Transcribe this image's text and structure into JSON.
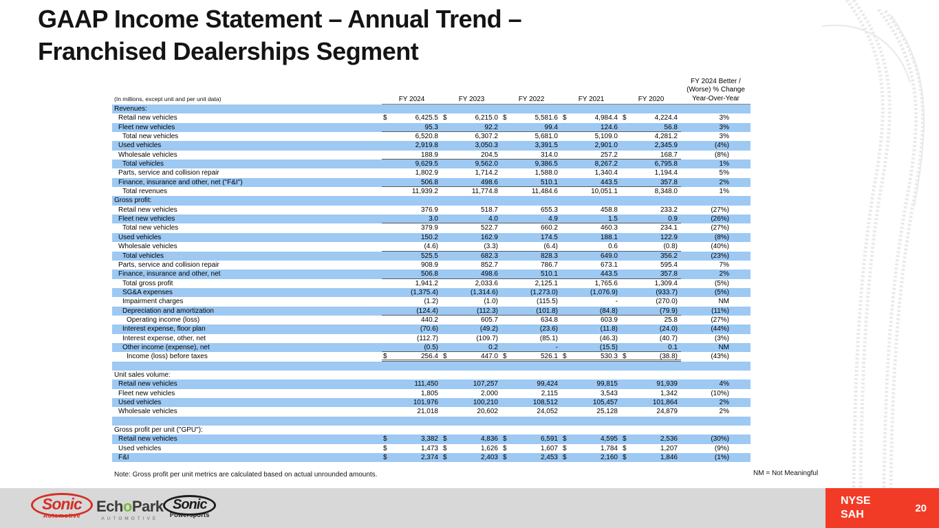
{
  "slide": {
    "title_line1": "GAAP Income Statement – Annual Trend –",
    "title_line2": "Franchised Dealerships Segment"
  },
  "colors": {
    "row_highlight_blue": "#9dc9f3",
    "accent_red": "#f23b26",
    "footer_gray": "#d8d8d8",
    "echopark_green": "#7db742",
    "sonic_red": "#d42e26"
  },
  "table": {
    "units_label": "(In millions, except unit and per unit data)",
    "columns": [
      "FY 2024",
      "FY 2023",
      "FY 2022",
      "FY 2021",
      "FY 2020"
    ],
    "change_header": [
      "FY 2024 Better /",
      "(Worse) % Change",
      "Year-Over-Year"
    ],
    "rows": [
      {
        "label": "Revenues:",
        "indent": 0
      },
      {
        "label": "Retail new vehicles",
        "indent": 1,
        "dollar": true,
        "values": [
          "6,425.5",
          "6,215.0",
          "5,581.6",
          "4,984.4",
          "4,224.4"
        ],
        "change": "3%"
      },
      {
        "label": "Fleet new vehicles",
        "indent": 1,
        "u": true,
        "values": [
          "95.3",
          "92.2",
          "99.4",
          "124.6",
          "56.8"
        ],
        "change": "3%"
      },
      {
        "label": "Total new vehicles",
        "indent": 2,
        "values": [
          "6,520.8",
          "6,307.2",
          "5,681.0",
          "5,109.0",
          "4,281.2"
        ],
        "change": "3%"
      },
      {
        "label": "Used vehicles",
        "indent": 1,
        "values": [
          "2,919.8",
          "3,050.3",
          "3,391.5",
          "2,901.0",
          "2,345.9"
        ],
        "change": "(4%)"
      },
      {
        "label": "Wholesale vehicles",
        "indent": 1,
        "u": true,
        "values": [
          "188.9",
          "204.5",
          "314.0",
          "257.2",
          "168.7"
        ],
        "change": "(8%)"
      },
      {
        "label": "Total vehicles",
        "indent": 2,
        "values": [
          "9,629.5",
          "9,562.0",
          "9,386.5",
          "8,267.2",
          "6,795.8"
        ],
        "change": "1%"
      },
      {
        "label": "Parts, service and collision repair",
        "indent": 1,
        "values": [
          "1,802.9",
          "1,714.2",
          "1,588.0",
          "1,340.4",
          "1,194.4"
        ],
        "change": "5%"
      },
      {
        "label": "Finance, insurance and other, net (\"F&I\")",
        "indent": 1,
        "u": true,
        "values": [
          "506.8",
          "498.6",
          "510.1",
          "443.5",
          "357.8"
        ],
        "change": "2%"
      },
      {
        "label": "Total revenues",
        "indent": 2,
        "values": [
          "11,939.2",
          "11,774.8",
          "11,484.6",
          "10,051.1",
          "8,348.0"
        ],
        "change": "1%"
      },
      {
        "label": "Gross profit:",
        "indent": 0
      },
      {
        "label": "Retail new vehicles",
        "indent": 1,
        "values": [
          "376.9",
          "518.7",
          "655.3",
          "458.8",
          "233.2"
        ],
        "change": "(27%)"
      },
      {
        "label": "Fleet new vehicles",
        "indent": 1,
        "u": true,
        "values": [
          "3.0",
          "4.0",
          "4.9",
          "1.5",
          "0.9"
        ],
        "change": "(26%)"
      },
      {
        "label": "Total new vehicles",
        "indent": 2,
        "values": [
          "379.9",
          "522.7",
          "660.2",
          "460.3",
          "234.1"
        ],
        "change": "(27%)"
      },
      {
        "label": "Used vehicles",
        "indent": 1,
        "values": [
          "150.2",
          "162.9",
          "174.5",
          "188.1",
          "122.9"
        ],
        "change": "(8%)"
      },
      {
        "label": "Wholesale vehicles",
        "indent": 1,
        "u": true,
        "values": [
          "(4.6)",
          "(3.3)",
          "(6.4)",
          "0.6",
          "(0.8)"
        ],
        "change": "(40%)"
      },
      {
        "label": "Total vehicles",
        "indent": 2,
        "values": [
          "525.5",
          "682.3",
          "828.3",
          "649.0",
          "356.2"
        ],
        "change": "(23%)"
      },
      {
        "label": "Parts, service and collision repair",
        "indent": 1,
        "values": [
          "908.9",
          "852.7",
          "786.7",
          "673.1",
          "595.4"
        ],
        "change": "7%"
      },
      {
        "label": "Finance, insurance and other, net",
        "indent": 1,
        "u": true,
        "values": [
          "506.8",
          "498.6",
          "510.1",
          "443.5",
          "357.8"
        ],
        "change": "2%"
      },
      {
        "label": "Total gross profit",
        "indent": 2,
        "values": [
          "1,941.2",
          "2,033.6",
          "2,125.1",
          "1,765.6",
          "1,309.4"
        ],
        "change": "(5%)"
      },
      {
        "label": "SG&A expenses",
        "indent": 2,
        "values": [
          "(1,375.4)",
          "(1,314.6)",
          "(1,273.0)",
          "(1,076.9)",
          "(933.7)"
        ],
        "change": "(5%)"
      },
      {
        "label": "Impairment charges",
        "indent": 2,
        "values": [
          "(1.2)",
          "(1.0)",
          "(115.5)",
          "-",
          "(270.0)"
        ],
        "change": "NM"
      },
      {
        "label": "Depreciation and amortization",
        "indent": 2,
        "u": true,
        "values": [
          "(124.4)",
          "(112.3)",
          "(101.8)",
          "(84.8)",
          "(79.9)"
        ],
        "change": "(11%)"
      },
      {
        "label": "Operating income (loss)",
        "indent": 3,
        "values": [
          "440.2",
          "605.7",
          "634.8",
          "603.9",
          "25.8"
        ],
        "change": "(27%)"
      },
      {
        "label": "Interest expense, floor plan",
        "indent": 2,
        "values": [
          "(70.6)",
          "(49.2)",
          "(23.6)",
          "(11.8)",
          "(24.0)"
        ],
        "change": "(44%)"
      },
      {
        "label": "Interest expense, other, net",
        "indent": 2,
        "values": [
          "(112.7)",
          "(109.7)",
          "(85.1)",
          "(46.3)",
          "(40.7)"
        ],
        "change": "(3%)"
      },
      {
        "label": "Other income (expense), net",
        "indent": 2,
        "u": true,
        "values": [
          "(0.5)",
          "0.2",
          "-",
          "(15.5)",
          "0.1"
        ],
        "change": "NM"
      },
      {
        "label": "Income (loss) before taxes",
        "indent": 3,
        "dollar": true,
        "d": true,
        "values": [
          "256.4",
          "447.0",
          "526.1",
          "530.3",
          "(38.8)"
        ],
        "change": "(43%)"
      },
      {
        "label": ""
      },
      {
        "label": "Unit sales volume:",
        "indent": 0
      },
      {
        "label": "Retail new vehicles",
        "indent": 1,
        "values": [
          "111,450",
          "107,257",
          "99,424",
          "99,815",
          "91,939"
        ],
        "change": "4%"
      },
      {
        "label": "Fleet new vehicles",
        "indent": 1,
        "values": [
          "1,805",
          "2,000",
          "2,115",
          "3,543",
          "1,342"
        ],
        "change": "(10%)"
      },
      {
        "label": "Used vehicles",
        "indent": 1,
        "values": [
          "101,976",
          "100,210",
          "108,512",
          "105,457",
          "101,864"
        ],
        "change": "2%"
      },
      {
        "label": "Wholesale vehicles",
        "indent": 1,
        "values": [
          "21,018",
          "20,602",
          "24,052",
          "25,128",
          "24,879"
        ],
        "change": "2%"
      },
      {
        "label": ""
      },
      {
        "label": "Gross profit per unit (\"GPU\"):",
        "indent": 0
      },
      {
        "label": "Retail new vehicles",
        "indent": 1,
        "dollar": true,
        "values": [
          "3,382",
          "4,836",
          "6,591",
          "4,595",
          "2,536"
        ],
        "change": "(30%)"
      },
      {
        "label": "Used vehicles",
        "indent": 1,
        "dollar": true,
        "values": [
          "1,473",
          "1,626",
          "1,607",
          "1,784",
          "1,207"
        ],
        "change": "(9%)"
      },
      {
        "label": "F&I",
        "indent": 1,
        "dollar": true,
        "values": [
          "2,374",
          "2,403",
          "2,453",
          "2,160",
          "1,846"
        ],
        "change": "(1%)"
      }
    ]
  },
  "notes": {
    "footnote": "Note: Gross profit per unit metrics are calculated based on actual unrounded amounts.",
    "nm": "NM = Not Meaningful"
  },
  "footer": {
    "logos": [
      {
        "name": "Sonic",
        "sub": "Automotive"
      },
      {
        "pre": "Ech",
        "o": "o",
        "post": "Park",
        "sub": "AUTOMOTIVE"
      },
      {
        "name": "Sonic",
        "sub": "Powersports"
      }
    ],
    "ticker": {
      "exchange": "NYSE",
      "symbol": "SAH"
    },
    "page_number": "20"
  }
}
